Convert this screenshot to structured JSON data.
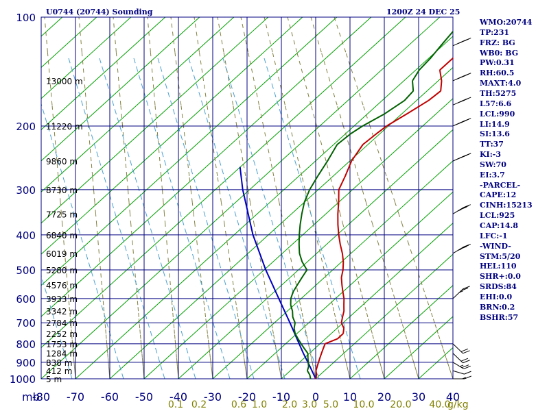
{
  "chart_data": {
    "type": "skew-t",
    "title_left": "U0744 (20744) Sounding",
    "title_right": "1200Z 24 DEC 25",
    "pressure_axis_label": "mb",
    "mixing_ratio_unit": "g/kg",
    "pressure_levels": [
      100,
      200,
      300,
      400,
      500,
      600,
      700,
      800,
      900,
      1000
    ],
    "temperature_ticks": [
      -80,
      -70,
      -60,
      -50,
      -40,
      -30,
      -20,
      -10,
      0,
      10,
      20,
      30,
      40
    ],
    "mixing_ratio_labels": [
      "0.1",
      "0.2",
      "0.6",
      "1.0",
      "2.0",
      "3.0",
      "5.0",
      "10.0",
      "20.0",
      "40.0"
    ],
    "height_labels": [
      {
        "p": 150,
        "text": "13000 m"
      },
      {
        "p": 200,
        "text": "11220 m"
      },
      {
        "p": 250,
        "text": "9860 m"
      },
      {
        "p": 300,
        "text": "8730 m"
      },
      {
        "p": 350,
        "text": "7725 m"
      },
      {
        "p": 400,
        "text": "6840 m"
      },
      {
        "p": 450,
        "text": "6019 m"
      },
      {
        "p": 500,
        "text": "5280 m"
      },
      {
        "p": 550,
        "text": "4576 m"
      },
      {
        "p": 600,
        "text": "3933 m"
      },
      {
        "p": 650,
        "text": "3342 m"
      },
      {
        "p": 700,
        "text": "2784 m"
      },
      {
        "p": 750,
        "text": "2252 m"
      },
      {
        "p": 800,
        "text": "1753 m"
      },
      {
        "p": 850,
        "text": "1284 m"
      },
      {
        "p": 900,
        "text": "838 m"
      },
      {
        "p": 950,
        "text": "412 m"
      },
      {
        "p": 1000,
        "text": "5 m"
      }
    ],
    "temperature_profile": [
      {
        "p": 1000,
        "t": 0.0
      },
      {
        "p": 975,
        "t": -1.0
      },
      {
        "p": 950,
        "t": -2.5
      },
      {
        "p": 925,
        "t": -3.5
      },
      {
        "p": 900,
        "t": -4.5
      },
      {
        "p": 875,
        "t": -5.5
      },
      {
        "p": 850,
        "t": -6.5
      },
      {
        "p": 825,
        "t": -7.5
      },
      {
        "p": 800,
        "t": -8.5
      },
      {
        "p": 775,
        "t": -6.5
      },
      {
        "p": 750,
        "t": -6.5
      },
      {
        "p": 725,
        "t": -8.0
      },
      {
        "p": 700,
        "t": -10.5
      },
      {
        "p": 675,
        "t": -12.0
      },
      {
        "p": 650,
        "t": -13.5
      },
      {
        "p": 625,
        "t": -15.5
      },
      {
        "p": 600,
        "t": -17.5
      },
      {
        "p": 575,
        "t": -20.0
      },
      {
        "p": 550,
        "t": -22.5
      },
      {
        "p": 525,
        "t": -25.0
      },
      {
        "p": 500,
        "t": -27.0
      },
      {
        "p": 475,
        "t": -29.5
      },
      {
        "p": 450,
        "t": -32.5
      },
      {
        "p": 425,
        "t": -36.0
      },
      {
        "p": 400,
        "t": -39.5
      },
      {
        "p": 375,
        "t": -43.0
      },
      {
        "p": 350,
        "t": -46.5
      },
      {
        "p": 325,
        "t": -50.0
      },
      {
        "p": 300,
        "t": -54.0
      },
      {
        "p": 275,
        "t": -56.5
      },
      {
        "p": 250,
        "t": -59.5
      },
      {
        "p": 225,
        "t": -61.5
      },
      {
        "p": 210,
        "t": -61.0
      },
      {
        "p": 200,
        "t": -60.5
      },
      {
        "p": 185,
        "t": -58.5
      },
      {
        "p": 170,
        "t": -56.5
      },
      {
        "p": 160,
        "t": -56.0
      },
      {
        "p": 150,
        "t": -59.0
      },
      {
        "p": 140,
        "t": -63.0
      },
      {
        "p": 130,
        "t": -63.0
      },
      {
        "p": 120,
        "t": -65.0
      },
      {
        "p": 110,
        "t": -68.0
      },
      {
        "p": 100,
        "t": -70.0
      }
    ],
    "dewpoint_profile": [
      {
        "p": 1000,
        "t": -1.5
      },
      {
        "p": 975,
        "t": -3.0
      },
      {
        "p": 950,
        "t": -5.0
      },
      {
        "p": 925,
        "t": -6.0
      },
      {
        "p": 900,
        "t": -7.5
      },
      {
        "p": 875,
        "t": -9.0
      },
      {
        "p": 850,
        "t": -10.5
      },
      {
        "p": 825,
        "t": -13.0
      },
      {
        "p": 800,
        "t": -15.5
      },
      {
        "p": 775,
        "t": -18.0
      },
      {
        "p": 750,
        "t": -20.5
      },
      {
        "p": 725,
        "t": -22.5
      },
      {
        "p": 700,
        "t": -24.0
      },
      {
        "p": 675,
        "t": -26.5
      },
      {
        "p": 650,
        "t": -28.5
      },
      {
        "p": 625,
        "t": -31.0
      },
      {
        "p": 600,
        "t": -33.0
      },
      {
        "p": 575,
        "t": -34.5
      },
      {
        "p": 550,
        "t": -35.5
      },
      {
        "p": 525,
        "t": -36.5
      },
      {
        "p": 500,
        "t": -37.5
      },
      {
        "p": 475,
        "t": -41.5
      },
      {
        "p": 450,
        "t": -45.0
      },
      {
        "p": 425,
        "t": -48.0
      },
      {
        "p": 400,
        "t": -51.0
      },
      {
        "p": 375,
        "t": -54.0
      },
      {
        "p": 350,
        "t": -57.0
      },
      {
        "p": 325,
        "t": -60.0
      },
      {
        "p": 300,
        "t": -62.5
      },
      {
        "p": 275,
        "t": -64.5
      },
      {
        "p": 250,
        "t": -66.5
      },
      {
        "p": 225,
        "t": -69.0
      },
      {
        "p": 210,
        "t": -68.5
      },
      {
        "p": 200,
        "t": -67.5
      },
      {
        "p": 185,
        "t": -65.0
      },
      {
        "p": 170,
        "t": -63.5
      },
      {
        "p": 160,
        "t": -64.0
      },
      {
        "p": 150,
        "t": -67.5
      },
      {
        "p": 140,
        "t": -69.0
      },
      {
        "p": 130,
        "t": -69.5
      },
      {
        "p": 120,
        "t": -70.5
      },
      {
        "p": 110,
        "t": -71.5
      },
      {
        "p": 100,
        "t": -72.5
      }
    ],
    "parcel_profile": [
      {
        "p": 1000,
        "t": 0.0
      },
      {
        "p": 925,
        "t": -5.6
      },
      {
        "p": 850,
        "t": -11.8
      },
      {
        "p": 700,
        "t": -25.5
      },
      {
        "p": 600,
        "t": -36.5
      },
      {
        "p": 500,
        "t": -49.5
      },
      {
        "p": 400,
        "t": -64.5
      },
      {
        "p": 300,
        "t": -82.0
      },
      {
        "p": 260,
        "t": -90.0
      }
    ],
    "wind_profile": [
      {
        "p": 1000,
        "dir": 270,
        "spd": 5
      },
      {
        "p": 950,
        "dir": 280,
        "spd": 10
      },
      {
        "p": 900,
        "dir": 290,
        "spd": 15
      },
      {
        "p": 850,
        "dir": 300,
        "spd": 20
      },
      {
        "p": 800,
        "dir": 300,
        "spd": 20
      },
      {
        "p": 600,
        "dir": 240,
        "spd": 15
      },
      {
        "p": 450,
        "dir": 250,
        "spd": 25
      },
      {
        "p": 350,
        "dir": 250,
        "spd": 25
      },
      {
        "p": 250,
        "dir": 255,
        "spd": 35
      },
      {
        "p": 200,
        "dir": 255,
        "spd": 45
      },
      {
        "p": 175,
        "dir": 255,
        "spd": 40
      },
      {
        "p": 150,
        "dir": 255,
        "spd": 35
      },
      {
        "p": 120,
        "dir": 255,
        "spd": 25
      }
    ]
  },
  "indices": [
    "WMO:20744",
    "TP:231",
    "FRZ: BG",
    "WB0: BG",
    "PW:0.31",
    "RH:60.5",
    "MAXT:4.0",
    "TH:5275",
    "L57:6.6",
    "LCL:990",
    "LI:14.9",
    "SI:13.6",
    "TT:37",
    "KI:-3",
    "SW:70",
    "EI:3.7",
    "-PARCEL-",
    "CAPE:12",
    "CINH:15213",
    "LCL:925",
    "CAP:14.8",
    "LFC:-1",
    "-WIND-",
    "STM:5/20",
    "HEL:110",
    "SHR+:0.0",
    "SRDS:84",
    "EHI:0.0",
    "BRN:0.2",
    "BSHR:57"
  ],
  "colors": {
    "grid": "#000080",
    "isotherm_skewed": "#00a000",
    "temperature": "#c00000",
    "dewpoint": "#006000",
    "parcel": "#0000c0",
    "moist_adiabat": "#808040",
    "mixing_ratio": "#4aa0d0",
    "barbs": "#000000",
    "text": "#000080"
  }
}
